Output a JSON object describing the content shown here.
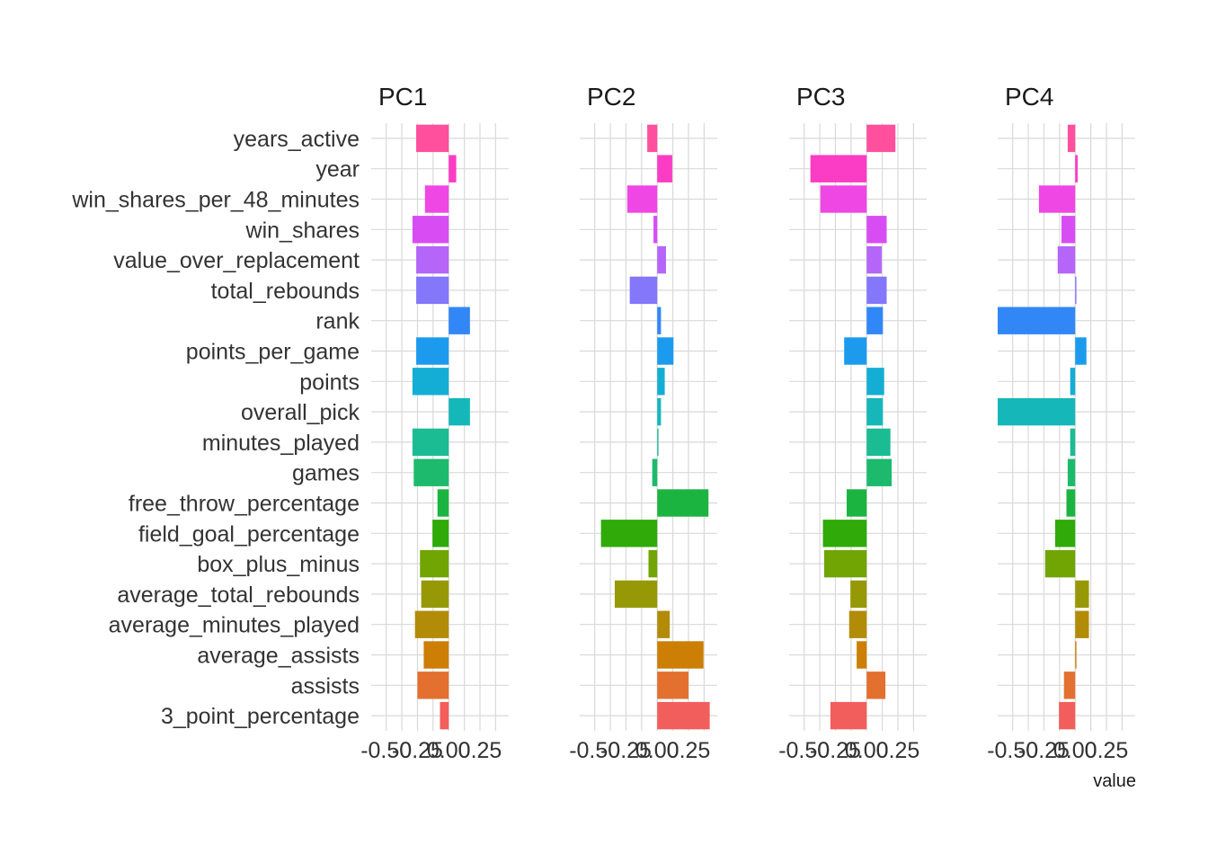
{
  "chart_data": {
    "type": "bar",
    "orientation": "horizontal",
    "facets": [
      "PC1",
      "PC2",
      "PC3",
      "PC4"
    ],
    "categories": [
      "years_active",
      "year",
      "win_shares_per_48_minutes",
      "win_shares",
      "value_over_replacement",
      "total_rebounds",
      "rank",
      "points_per_game",
      "points",
      "overall_pick",
      "minutes_played",
      "games",
      "free_throw_percentage",
      "field_goal_percentage",
      "box_plus_minus",
      "average_total_rebounds",
      "average_minutes_played",
      "average_assists",
      "assists",
      "3_point_percentage"
    ],
    "category_colors": [
      "#FF4F9D",
      "#FB3CC4",
      "#EF47E3",
      "#D84DF3",
      "#B565F7",
      "#8477F9",
      "#3287F7",
      "#1C9BEE",
      "#14AED4",
      "#16B7B9",
      "#1BBB93",
      "#1DBA6E",
      "#1CB440",
      "#2FAA08",
      "#70A504",
      "#969905",
      "#B28C08",
      "#CC7E05",
      "#E3702F",
      "#F25E5B"
    ],
    "series": [
      {
        "name": "PC1",
        "values": [
          -0.26,
          0.06,
          -0.19,
          -0.29,
          -0.26,
          -0.26,
          0.17,
          -0.26,
          -0.29,
          0.17,
          -0.29,
          -0.28,
          -0.09,
          -0.13,
          -0.23,
          -0.22,
          -0.27,
          -0.2,
          -0.25,
          -0.07
        ]
      },
      {
        "name": "PC2",
        "values": [
          -0.08,
          0.12,
          -0.24,
          -0.03,
          0.07,
          -0.22,
          0.03,
          0.13,
          0.06,
          0.03,
          0.01,
          -0.04,
          0.41,
          -0.45,
          -0.07,
          -0.34,
          0.1,
          0.37,
          0.25,
          0.42
        ]
      },
      {
        "name": "PC3",
        "values": [
          0.23,
          -0.45,
          -0.37,
          0.16,
          0.12,
          0.16,
          0.13,
          -0.18,
          0.14,
          0.13,
          0.19,
          0.2,
          -0.16,
          -0.35,
          -0.34,
          -0.13,
          -0.14,
          -0.08,
          0.15,
          -0.29
        ]
      },
      {
        "name": "PC4",
        "values": [
          -0.06,
          0.02,
          -0.29,
          -0.11,
          -0.14,
          0.01,
          -0.62,
          0.09,
          -0.04,
          -0.62,
          -0.04,
          -0.06,
          -0.07,
          -0.16,
          -0.24,
          0.11,
          0.11,
          0.01,
          -0.09,
          -0.13
        ]
      }
    ],
    "xlim": [
      -0.62,
      0.48
    ],
    "xticks": [
      "-0.50",
      "-0.25",
      "0.00",
      "0.25"
    ],
    "xtick_values": [
      -0.5,
      -0.25,
      0,
      0.25
    ],
    "xlabel": "value",
    "ylabel": "",
    "grid": true,
    "legend": "none"
  }
}
